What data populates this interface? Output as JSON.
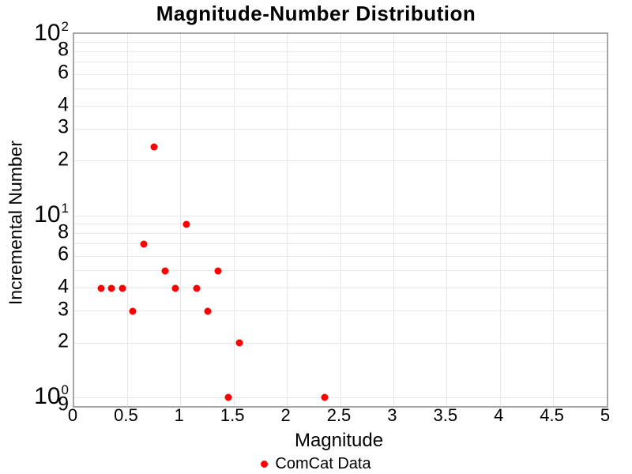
{
  "title": "Magnitude-Number Distribution",
  "x_axis": {
    "label": "Magnitude",
    "min": 0,
    "max": 5,
    "tick_labels": [
      "0",
      "0.5",
      "1",
      "1.5",
      "2",
      "2.5",
      "3",
      "3.5",
      "4",
      "4.5",
      "5"
    ],
    "tick_values": [
      0,
      0.5,
      1,
      1.5,
      2,
      2.5,
      3,
      3.5,
      4,
      4.5,
      5
    ],
    "gridline_values": [
      0.5,
      1,
      1.5,
      2,
      2.5,
      3,
      3.5,
      4,
      4.5
    ]
  },
  "y_axis": {
    "label": "Incremental Number",
    "scale": "log",
    "min": 0.9,
    "max": 100,
    "decade_ticks": [
      {
        "value": 100,
        "base": "10",
        "exponent": "2"
      },
      {
        "value": 10,
        "base": "10",
        "exponent": "1"
      },
      {
        "value": 1,
        "base": "10",
        "exponent": "0"
      }
    ],
    "minor_tick_labels": [
      {
        "value": 80,
        "text": "8"
      },
      {
        "value": 60,
        "text": "6"
      },
      {
        "value": 40,
        "text": "4"
      },
      {
        "value": 30,
        "text": "3"
      },
      {
        "value": 20,
        "text": "2"
      },
      {
        "value": 8,
        "text": "8"
      },
      {
        "value": 6,
        "text": "6"
      },
      {
        "value": 4,
        "text": "4"
      },
      {
        "value": 3,
        "text": "3"
      },
      {
        "value": 2,
        "text": "2"
      },
      {
        "value": 0.9,
        "text": "9"
      }
    ],
    "gridline_values": [
      90,
      80,
      70,
      60,
      50,
      40,
      30,
      20,
      10,
      9,
      8,
      7,
      6,
      5,
      4,
      3,
      2,
      1
    ]
  },
  "legend": {
    "items": [
      {
        "label": "ComCat Data",
        "color": "#ff0000",
        "marker": "circle"
      }
    ]
  },
  "colors": {
    "marker": "#ff0000",
    "grid": "#e8e8e8",
    "frame": "#a8a8a8",
    "text": "#000000",
    "background": "#ffffff"
  },
  "chart_data": {
    "type": "scatter",
    "title": "Magnitude-Number Distribution",
    "xlabel": "Magnitude",
    "ylabel": "Incremental Number",
    "xlim": [
      0,
      5
    ],
    "ylim": [
      0.9,
      100
    ],
    "yscale": "log",
    "grid": true,
    "legend_position": "bottom-center",
    "series": [
      {
        "name": "ComCat Data",
        "color": "#ff0000",
        "marker": "circle",
        "x": [
          0.25,
          0.35,
          0.45,
          0.55,
          0.65,
          0.75,
          0.85,
          0.95,
          1.05,
          1.15,
          1.25,
          1.35,
          1.45,
          1.55,
          2.35
        ],
        "y": [
          4,
          4,
          4,
          3,
          7,
          24,
          5,
          4,
          9,
          4,
          3,
          5,
          1,
          2,
          1
        ]
      }
    ]
  }
}
